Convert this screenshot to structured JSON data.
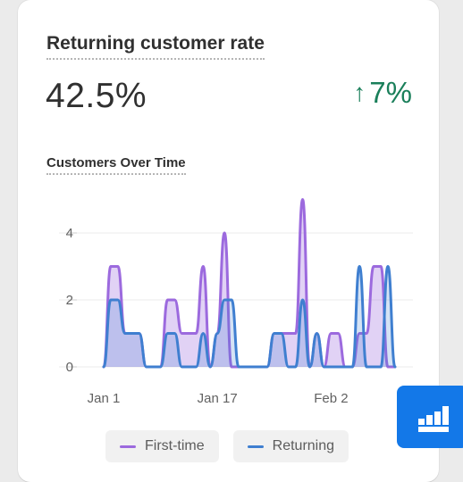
{
  "card": {
    "title": "Returning customer rate",
    "metric": "42.5%",
    "delta": {
      "arrow": "↑",
      "value": "7%",
      "color": "#1a7f5a"
    },
    "subtitle": "Customers Over Time"
  },
  "chart_data": {
    "type": "area",
    "title": "Customers Over Time",
    "xlabel": "",
    "ylabel": "",
    "ylim": [
      0,
      5
    ],
    "yticks": [
      0,
      2,
      4
    ],
    "xtick_labels": [
      {
        "label": "Jan 1",
        "index": 0
      },
      {
        "label": "Jan 17",
        "index": 16
      },
      {
        "label": "Feb 2",
        "index": 32
      }
    ],
    "grid": true,
    "legend_placement": "bottom",
    "series": [
      {
        "name": "First-time",
        "color": "#9c6ade",
        "values": [
          0,
          3,
          3,
          1,
          1,
          1,
          0,
          0,
          0,
          2,
          2,
          1,
          1,
          1,
          3,
          0,
          1,
          4,
          0,
          0,
          0,
          0,
          0,
          0,
          1,
          1,
          1,
          1,
          5,
          0,
          1,
          0,
          1,
          1,
          0,
          0,
          1,
          1,
          3,
          3,
          0,
          0
        ]
      },
      {
        "name": "Returning",
        "color": "#3f7fd0",
        "values": [
          0,
          2,
          2,
          1,
          1,
          1,
          0,
          0,
          0,
          1,
          1,
          0,
          0,
          0,
          1,
          0,
          1,
          2,
          2,
          0,
          0,
          0,
          0,
          0,
          1,
          1,
          0,
          0,
          2,
          0,
          1,
          0,
          0,
          0,
          0,
          0,
          3,
          0,
          0,
          0,
          3,
          0
        ]
      }
    ]
  },
  "legend": {
    "first_time": "First-time",
    "returning": "Returning"
  },
  "fab": {
    "icon": "bar-chart-icon"
  }
}
